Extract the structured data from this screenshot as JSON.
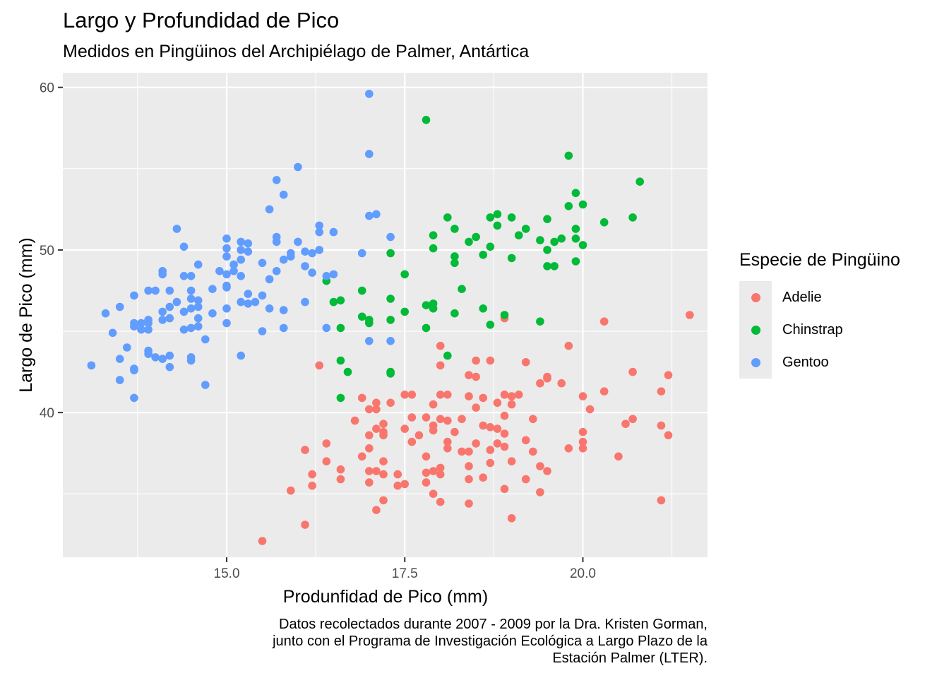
{
  "chart_data": {
    "type": "scatter",
    "title": "Largo y Profundidad de Pico",
    "subtitle": "Medidos en Pingüinos del Archipiélago de Palmer, Antártica",
    "xlabel": "Produnfidad de Pico (mm)",
    "ylabel": "Largo de Pico (mm)",
    "caption": [
      "Datos recolectados durante 2007 - 2009 por la Dra. Kristen Gorman,",
      "junto con el Programa de Investigación Ecológica a Largo Plazo de la",
      "Estación Palmer (LTER)."
    ],
    "xlim": [
      12.7,
      21.75
    ],
    "ylim": [
      31.1,
      60.9
    ],
    "xticks": [
      15.0,
      17.5,
      20.0
    ],
    "xtick_labels": [
      "15.0",
      "17.5",
      "20.0"
    ],
    "yticks": [
      40,
      50,
      60
    ],
    "ytick_labels": [
      "40",
      "50",
      "60"
    ],
    "grid": true,
    "background": "#ebebeb",
    "legend_position": "right",
    "legend": {
      "title": "Especie de Pingüino",
      "items": [
        {
          "label": "Adelie",
          "color": "#f8766d"
        },
        {
          "label": "Chinstrap",
          "color": "#00ba38"
        },
        {
          "label": "Gentoo",
          "color": "#619cff"
        }
      ]
    },
    "series": [
      {
        "name": "Adelie",
        "color": "#f8766d",
        "points": [
          [
            21.5,
            46.0
          ],
          [
            20.3,
            45.6
          ],
          [
            18.9,
            45.8
          ],
          [
            18.0,
            44.1
          ],
          [
            19.8,
            44.1
          ],
          [
            18.7,
            43.2
          ],
          [
            18.5,
            43.2
          ],
          [
            19.2,
            43.1
          ],
          [
            18.0,
            42.9
          ],
          [
            16.3,
            42.9
          ],
          [
            20.7,
            42.5
          ],
          [
            18.4,
            42.3
          ],
          [
            21.2,
            42.3
          ],
          [
            18.5,
            42.2
          ],
          [
            19.5,
            42.2
          ],
          [
            19.5,
            42.1
          ],
          [
            19.7,
            41.8
          ],
          [
            19.4,
            41.8
          ],
          [
            18.0,
            41.1
          ],
          [
            18.1,
            41.1
          ],
          [
            17.6,
            41.1
          ],
          [
            19.1,
            41.1
          ],
          [
            20.0,
            41.0
          ],
          [
            17.5,
            41.1
          ],
          [
            18.9,
            41.1
          ],
          [
            19.0,
            41.0
          ],
          [
            18.4,
            41.0
          ],
          [
            21.1,
            41.3
          ],
          [
            20.3,
            41.3
          ],
          [
            18.6,
            40.9
          ],
          [
            16.9,
            40.9
          ],
          [
            17.3,
            40.6
          ],
          [
            17.1,
            40.6
          ],
          [
            17.9,
            40.5
          ],
          [
            18.8,
            40.6
          ],
          [
            17.0,
            40.2
          ],
          [
            17.1,
            40.2
          ],
          [
            18.5,
            40.3
          ],
          [
            19.0,
            40.5
          ],
          [
            20.1,
            40.2
          ],
          [
            17.8,
            39.7
          ],
          [
            18.0,
            39.6
          ],
          [
            18.3,
            39.6
          ],
          [
            17.6,
            39.7
          ],
          [
            18.9,
            39.8
          ],
          [
            19.3,
            39.6
          ],
          [
            20.7,
            39.6
          ],
          [
            18.1,
            39.5
          ],
          [
            18.6,
            39.2
          ],
          [
            16.8,
            39.5
          ],
          [
            20.6,
            39.3
          ],
          [
            21.1,
            39.2
          ],
          [
            17.2,
            39.3
          ],
          [
            17.9,
            39.2
          ],
          [
            18.7,
            39.1
          ],
          [
            18.8,
            39.0
          ],
          [
            17.5,
            39.0
          ],
          [
            17.9,
            38.9
          ],
          [
            17.1,
            39.0
          ],
          [
            20.0,
            38.8
          ],
          [
            18.9,
            38.7
          ],
          [
            17.7,
            38.6
          ],
          [
            17.0,
            38.6
          ],
          [
            18.2,
            38.8
          ],
          [
            19.2,
            38.3
          ],
          [
            21.2,
            38.6
          ],
          [
            17.2,
            38.6
          ],
          [
            17.2,
            38.8
          ],
          [
            18.5,
            38.1
          ],
          [
            18.8,
            38.1
          ],
          [
            16.4,
            38.1
          ],
          [
            17.6,
            38.2
          ],
          [
            20.0,
            38.2
          ],
          [
            18.1,
            38.2
          ],
          [
            19.8,
            37.8
          ],
          [
            20.0,
            37.8
          ],
          [
            17.0,
            37.8
          ],
          [
            18.1,
            37.8
          ],
          [
            16.1,
            37.7
          ],
          [
            18.7,
            37.7
          ],
          [
            18.4,
            37.6
          ],
          [
            19.3,
            37.6
          ],
          [
            18.9,
            37.9
          ],
          [
            18.3,
            37.6
          ],
          [
            17.8,
            37.3
          ],
          [
            16.9,
            37.3
          ],
          [
            20.5,
            37.3
          ],
          [
            19.0,
            37.0
          ],
          [
            17.2,
            37.0
          ],
          [
            16.4,
            37.0
          ],
          [
            19.4,
            36.7
          ],
          [
            18.0,
            36.6
          ],
          [
            18.4,
            36.7
          ],
          [
            18.7,
            36.9
          ],
          [
            16.6,
            36.5
          ],
          [
            19.5,
            36.4
          ],
          [
            17.9,
            36.4
          ],
          [
            17.8,
            36.3
          ],
          [
            17.0,
            36.4
          ],
          [
            17.1,
            36.4
          ],
          [
            18.0,
            36.2
          ],
          [
            17.2,
            36.2
          ],
          [
            17.4,
            36.2
          ],
          [
            16.2,
            36.2
          ],
          [
            18.6,
            36.0
          ],
          [
            19.2,
            35.9
          ],
          [
            16.6,
            35.9
          ],
          [
            18.4,
            35.9
          ],
          [
            17.0,
            35.7
          ],
          [
            17.8,
            35.7
          ],
          [
            17.5,
            35.6
          ],
          [
            16.2,
            35.5
          ],
          [
            18.9,
            35.3
          ],
          [
            17.4,
            35.5
          ],
          [
            17.9,
            35.0
          ],
          [
            19.4,
            35.1
          ],
          [
            15.9,
            35.2
          ],
          [
            18.0,
            34.5
          ],
          [
            18.4,
            34.4
          ],
          [
            17.2,
            34.6
          ],
          [
            17.1,
            34.0
          ],
          [
            19.0,
            33.5
          ],
          [
            21.1,
            34.6
          ],
          [
            16.1,
            33.1
          ],
          [
            15.5,
            32.1
          ]
        ]
      },
      {
        "name": "Chinstrap",
        "color": "#00ba38",
        "points": [
          [
            17.8,
            58.0
          ],
          [
            19.8,
            55.8
          ],
          [
            20.8,
            54.2
          ],
          [
            19.9,
            53.5
          ],
          [
            19.8,
            52.7
          ],
          [
            20.0,
            52.8
          ],
          [
            18.8,
            52.2
          ],
          [
            17.9,
            50.9
          ],
          [
            18.1,
            52.0
          ],
          [
            18.7,
            52.0
          ],
          [
            19.0,
            52.0
          ],
          [
            19.5,
            51.9
          ],
          [
            20.3,
            51.7
          ],
          [
            20.7,
            52.0
          ],
          [
            18.2,
            51.3
          ],
          [
            18.8,
            51.5
          ],
          [
            19.1,
            50.9
          ],
          [
            19.2,
            51.3
          ],
          [
            19.5,
            50.0
          ],
          [
            19.7,
            50.7
          ],
          [
            19.9,
            51.3
          ],
          [
            18.5,
            50.8
          ],
          [
            18.7,
            50.2
          ],
          [
            18.4,
            50.5
          ],
          [
            19.4,
            50.6
          ],
          [
            19.6,
            50.5
          ],
          [
            19.9,
            50.7
          ],
          [
            20.0,
            50.3
          ],
          [
            18.6,
            49.7
          ],
          [
            18.2,
            49.6
          ],
          [
            17.9,
            50.1
          ],
          [
            19.0,
            49.5
          ],
          [
            19.5,
            49.0
          ],
          [
            19.6,
            49.0
          ],
          [
            19.9,
            49.3
          ],
          [
            18.2,
            49.2
          ],
          [
            17.3,
            49.8
          ],
          [
            17.5,
            48.5
          ],
          [
            18.3,
            47.6
          ],
          [
            16.4,
            48.1
          ],
          [
            16.9,
            47.5
          ],
          [
            17.3,
            47.0
          ],
          [
            16.6,
            46.9
          ],
          [
            16.5,
            46.8
          ],
          [
            17.8,
            46.6
          ],
          [
            17.9,
            46.7
          ],
          [
            18.6,
            46.4
          ],
          [
            17.5,
            46.2
          ],
          [
            18.2,
            46.1
          ],
          [
            18.9,
            46.0
          ],
          [
            16.9,
            45.9
          ],
          [
            17.3,
            45.7
          ],
          [
            17.0,
            45.7
          ],
          [
            17.0,
            45.5
          ],
          [
            18.7,
            45.4
          ],
          [
            19.4,
            45.6
          ],
          [
            16.6,
            45.2
          ],
          [
            17.8,
            45.2
          ],
          [
            18.1,
            43.5
          ],
          [
            16.6,
            43.2
          ],
          [
            16.7,
            42.5
          ],
          [
            17.3,
            42.4
          ],
          [
            17.3,
            42.5
          ],
          [
            16.6,
            40.9
          ],
          [
            17.9,
            46.4
          ]
        ]
      },
      {
        "name": "Gentoo",
        "color": "#619cff",
        "points": [
          [
            17.0,
            59.6
          ],
          [
            17.0,
            55.9
          ],
          [
            16.0,
            55.1
          ],
          [
            15.7,
            54.3
          ],
          [
            15.8,
            53.4
          ],
          [
            15.6,
            52.5
          ],
          [
            17.0,
            52.1
          ],
          [
            17.1,
            52.2
          ],
          [
            15.0,
            50.7
          ],
          [
            15.2,
            50.5
          ],
          [
            15.3,
            50.4
          ],
          [
            14.3,
            51.3
          ],
          [
            14.4,
            50.2
          ],
          [
            15.0,
            50.1
          ],
          [
            15.2,
            50.0
          ],
          [
            15.3,
            49.9
          ],
          [
            15.7,
            50.8
          ],
          [
            15.7,
            50.5
          ],
          [
            16.0,
            50.5
          ],
          [
            16.1,
            49.9
          ],
          [
            16.2,
            49.8
          ],
          [
            16.3,
            50.0
          ],
          [
            16.5,
            51.1
          ],
          [
            16.3,
            51.5
          ],
          [
            16.3,
            51.1
          ],
          [
            17.3,
            50.8
          ],
          [
            16.9,
            49.8
          ],
          [
            15.9,
            49.8
          ],
          [
            15.9,
            49.6
          ],
          [
            15.8,
            49.4
          ],
          [
            15.7,
            48.7
          ],
          [
            15.6,
            48.2
          ],
          [
            15.2,
            49.4
          ],
          [
            15.0,
            49.6
          ],
          [
            15.1,
            49.1
          ],
          [
            15.5,
            49.2
          ],
          [
            15.1,
            48.7
          ],
          [
            15.0,
            48.5
          ],
          [
            14.6,
            49.1
          ],
          [
            14.9,
            48.7
          ],
          [
            15.2,
            48.4
          ],
          [
            14.4,
            48.4
          ],
          [
            14.5,
            48.4
          ],
          [
            14.1,
            48.7
          ],
          [
            14.1,
            48.5
          ],
          [
            14.2,
            47.5
          ],
          [
            13.9,
            47.5
          ],
          [
            13.7,
            47.2
          ],
          [
            14.0,
            47.5
          ],
          [
            14.5,
            47.5
          ],
          [
            14.8,
            47.6
          ],
          [
            15.0,
            47.7
          ],
          [
            15.0,
            47.8
          ],
          [
            15.2,
            46.8
          ],
          [
            15.3,
            47.3
          ],
          [
            15.5,
            47.2
          ],
          [
            15.4,
            46.8
          ],
          [
            15.3,
            46.7
          ],
          [
            15.6,
            46.4
          ],
          [
            15.8,
            46.3
          ],
          [
            16.1,
            46.8
          ],
          [
            15.8,
            45.2
          ],
          [
            15.5,
            45.0
          ],
          [
            15.0,
            46.4
          ],
          [
            15.0,
            45.5
          ],
          [
            14.8,
            46.1
          ],
          [
            14.6,
            46.9
          ],
          [
            14.6,
            46.5
          ],
          [
            14.5,
            46.4
          ],
          [
            14.5,
            45.2
          ],
          [
            14.6,
            45.3
          ],
          [
            14.6,
            45.8
          ],
          [
            14.4,
            46.2
          ],
          [
            14.4,
            45.1
          ],
          [
            14.5,
            47.0
          ],
          [
            14.2,
            46.5
          ],
          [
            14.2,
            45.8
          ],
          [
            14.3,
            46.8
          ],
          [
            14.1,
            46.2
          ],
          [
            14.1,
            45.7
          ],
          [
            13.9,
            45.7
          ],
          [
            13.9,
            45.5
          ],
          [
            13.9,
            45.1
          ],
          [
            13.8,
            45.5
          ],
          [
            13.8,
            45.1
          ],
          [
            13.7,
            45.5
          ],
          [
            13.7,
            45.3
          ],
          [
            13.5,
            46.5
          ],
          [
            13.3,
            46.1
          ],
          [
            13.4,
            44.9
          ],
          [
            13.7,
            42.7
          ],
          [
            13.7,
            42.6
          ],
          [
            13.5,
            42.0
          ],
          [
            13.7,
            40.9
          ],
          [
            13.6,
            44.0
          ],
          [
            13.5,
            43.3
          ],
          [
            13.1,
            42.9
          ],
          [
            13.9,
            43.8
          ],
          [
            13.9,
            43.6
          ],
          [
            14.0,
            43.4
          ],
          [
            14.1,
            43.3
          ],
          [
            14.2,
            43.5
          ],
          [
            14.2,
            42.8
          ],
          [
            14.5,
            43.4
          ],
          [
            14.5,
            43.2
          ],
          [
            14.7,
            41.7
          ],
          [
            14.7,
            44.5
          ],
          [
            15.2,
            43.5
          ],
          [
            16.4,
            45.2
          ],
          [
            17.0,
            44.4
          ],
          [
            16.4,
            48.4
          ],
          [
            16.5,
            48.5
          ],
          [
            16.2,
            48.6
          ],
          [
            16.1,
            49.0
          ],
          [
            17.3,
            44.4
          ]
        ]
      }
    ]
  }
}
